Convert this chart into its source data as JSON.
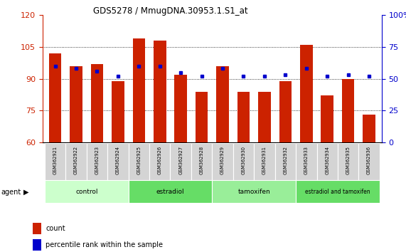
{
  "title": "GDS5278 / MmugDNA.30953.1.S1_at",
  "samples": [
    "GSM362921",
    "GSM362922",
    "GSM362923",
    "GSM362924",
    "GSM362925",
    "GSM362926",
    "GSM362927",
    "GSM362928",
    "GSM362929",
    "GSM362930",
    "GSM362931",
    "GSM362932",
    "GSM362933",
    "GSM362934",
    "GSM362935",
    "GSM362936"
  ],
  "count_values": [
    102,
    96,
    97,
    89,
    109,
    108,
    92,
    84,
    96,
    84,
    84,
    89,
    106,
    82,
    90,
    73
  ],
  "percentile_values": [
    60,
    58,
    56,
    52,
    60,
    60,
    55,
    52,
    58,
    52,
    52,
    53,
    58,
    52,
    53,
    52
  ],
  "groups": [
    {
      "label": "control",
      "start": 0,
      "end": 3,
      "color": "#ccffcc"
    },
    {
      "label": "estradiol",
      "start": 4,
      "end": 7,
      "color": "#66dd66"
    },
    {
      "label": "tamoxifen",
      "start": 8,
      "end": 11,
      "color": "#99ee99"
    },
    {
      "label": "estradiol and tamoxifen",
      "start": 12,
      "end": 15,
      "color": "#66dd66"
    }
  ],
  "bar_color": "#cc2200",
  "dot_color": "#0000cc",
  "ylim_left": [
    60,
    120
  ],
  "ylim_right": [
    0,
    100
  ],
  "yticks_left": [
    60,
    75,
    90,
    105,
    120
  ],
  "yticks_right": [
    0,
    25,
    50,
    75,
    100
  ],
  "tick_color_left": "#cc2200",
  "tick_color_right": "#0000cc",
  "grid_yticks": [
    75,
    90,
    105
  ]
}
